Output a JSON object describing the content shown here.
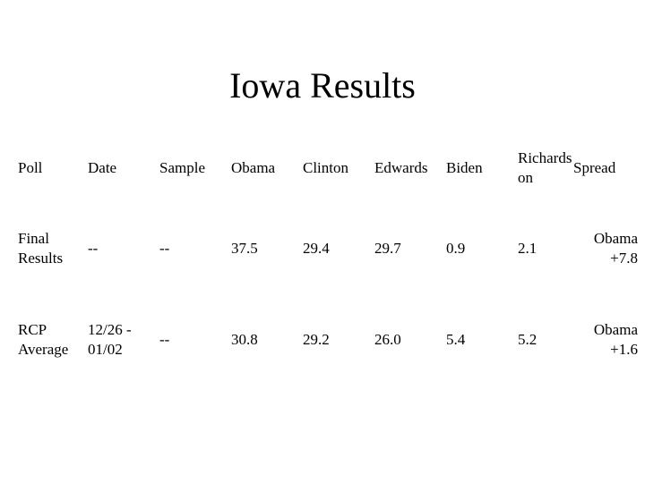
{
  "title": "Iowa Results",
  "table": {
    "header": [
      "Poll",
      "Date",
      "Sample",
      "Obama",
      "Clinton",
      "Edwards",
      "Biden",
      "Richardson",
      "Spread"
    ],
    "rows": [
      [
        "Final Results",
        "--",
        "--",
        "37.5",
        "29.4",
        "29.7",
        "0.9",
        "2.1",
        "Obama +7.8"
      ],
      [
        "RCP Average",
        "12/26 - 01/02",
        "--",
        "30.8",
        "29.2",
        "26.0",
        "5.4",
        "5.2",
        "Obama +1.6"
      ]
    ]
  }
}
